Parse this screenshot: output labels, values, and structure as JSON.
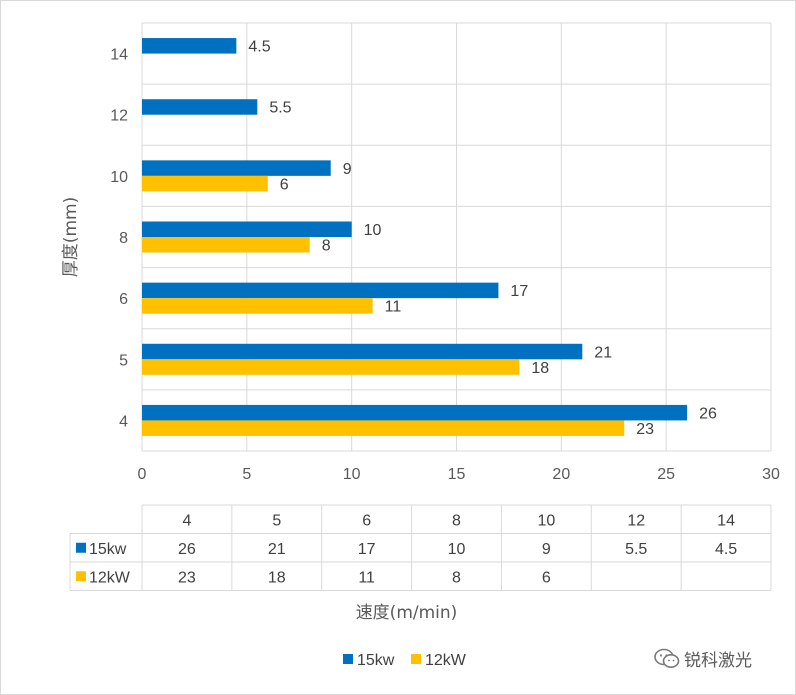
{
  "chart_data": {
    "type": "bar",
    "orientation": "horizontal",
    "categories": [
      "4",
      "5",
      "6",
      "8",
      "10",
      "12",
      "14"
    ],
    "series": [
      {
        "name": "15kw",
        "color": "#0070c0",
        "values": [
          26,
          21,
          17,
          10,
          9,
          5.5,
          4.5
        ]
      },
      {
        "name": "12kW",
        "color": "#ffc000",
        "values": [
          23,
          18,
          11,
          8,
          6,
          null,
          null
        ]
      }
    ],
    "title": "",
    "xlabel": "速度(m/min)",
    "ylabel": "厚度(mm)",
    "xlim": [
      0,
      30
    ],
    "xticks": [
      0,
      5,
      10,
      15,
      20,
      25,
      30
    ],
    "data_labels": true,
    "data_table": true,
    "grid": true,
    "legend": "bottom"
  },
  "watermark": {
    "text": "锐科激光",
    "icon": "wechat-icon"
  }
}
